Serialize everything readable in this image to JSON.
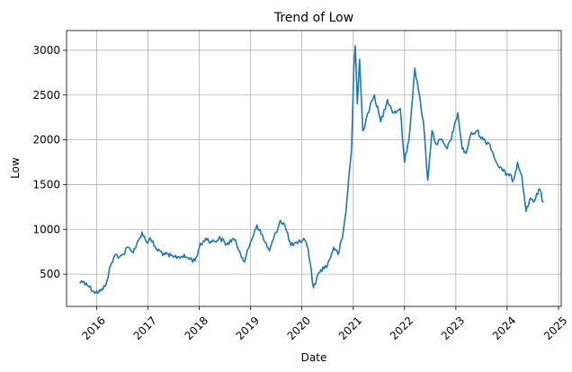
{
  "chart_data": {
    "type": "line",
    "title": "Trend of Low",
    "xlabel": "Date",
    "ylabel": "Low",
    "grid": true,
    "xlim": [
      "2015-06-01",
      "2025-01-20"
    ],
    "ylim": [
      140,
      3220
    ],
    "x_ticks": [
      "2016",
      "2017",
      "2018",
      "2019",
      "2020",
      "2021",
      "2022",
      "2023",
      "2024",
      "2025"
    ],
    "y_ticks": [
      500,
      1000,
      1500,
      2000,
      2500,
      3000
    ],
    "series": [
      {
        "color": "#1f77b4",
        "points": [
          [
            "2015-09-01",
            410
          ],
          [
            "2015-10-01",
            420
          ],
          [
            "2015-10-20",
            400
          ],
          [
            "2015-11-10",
            360
          ],
          [
            "2015-12-10",
            310
          ],
          [
            "2016-01-15",
            300
          ],
          [
            "2016-02-15",
            330
          ],
          [
            "2016-03-15",
            430
          ],
          [
            "2016-04-10",
            600
          ],
          [
            "2016-05-15",
            720
          ],
          [
            "2016-06-15",
            700
          ],
          [
            "2016-07-10",
            720
          ],
          [
            "2016-08-10",
            800
          ],
          [
            "2016-09-10",
            750
          ],
          [
            "2016-10-10",
            820
          ],
          [
            "2016-11-01",
            900
          ],
          [
            "2016-11-20",
            970
          ],
          [
            "2016-12-20",
            860
          ],
          [
            "2017-01-20",
            890
          ],
          [
            "2017-03-01",
            780
          ],
          [
            "2017-05-01",
            720
          ],
          [
            "2017-07-01",
            690
          ],
          [
            "2017-09-01",
            700
          ],
          [
            "2017-10-15",
            680
          ],
          [
            "2017-12-01",
            650
          ],
          [
            "2018-01-01",
            800
          ],
          [
            "2018-02-15",
            900
          ],
          [
            "2018-04-01",
            860
          ],
          [
            "2018-06-01",
            900
          ],
          [
            "2018-07-15",
            830
          ],
          [
            "2018-09-01",
            900
          ],
          [
            "2018-10-15",
            760
          ],
          [
            "2018-11-20",
            640
          ],
          [
            "2019-01-01",
            860
          ],
          [
            "2019-02-15",
            1050
          ],
          [
            "2019-04-01",
            900
          ],
          [
            "2019-05-15",
            760
          ],
          [
            "2019-06-15",
            900
          ],
          [
            "2019-08-01",
            1100
          ],
          [
            "2019-09-01",
            1050
          ],
          [
            "2019-10-15",
            820
          ],
          [
            "2019-12-01",
            840
          ],
          [
            "2020-01-15",
            900
          ],
          [
            "2020-02-15",
            780
          ],
          [
            "2020-03-23",
            350
          ],
          [
            "2020-04-15",
            450
          ],
          [
            "2020-05-15",
            550
          ],
          [
            "2020-07-01",
            600
          ],
          [
            "2020-08-15",
            800
          ],
          [
            "2020-09-15",
            720
          ],
          [
            "2020-10-15",
            900
          ],
          [
            "2020-11-10",
            1200
          ],
          [
            "2020-12-01",
            1600
          ],
          [
            "2020-12-20",
            1900
          ],
          [
            "2021-01-05",
            2800
          ],
          [
            "2021-01-15",
            3050
          ],
          [
            "2021-01-30",
            2400
          ],
          [
            "2021-02-15",
            2900
          ],
          [
            "2021-03-10",
            2100
          ],
          [
            "2021-04-15",
            2300
          ],
          [
            "2021-06-01",
            2500
          ],
          [
            "2021-07-15",
            2200
          ],
          [
            "2021-09-01",
            2450
          ],
          [
            "2021-10-15",
            2300
          ],
          [
            "2021-12-01",
            2350
          ],
          [
            "2022-01-01",
            1750
          ],
          [
            "2022-02-01",
            2000
          ],
          [
            "2022-03-15",
            2800
          ],
          [
            "2022-04-10",
            2550
          ],
          [
            "2022-05-15",
            2200
          ],
          [
            "2022-06-15",
            1550
          ],
          [
            "2022-07-15",
            2100
          ],
          [
            "2022-08-15",
            1950
          ],
          [
            "2022-09-15",
            2000
          ],
          [
            "2022-11-01",
            1900
          ],
          [
            "2022-12-15",
            2100
          ],
          [
            "2023-01-15",
            2300
          ],
          [
            "2023-02-15",
            1900
          ],
          [
            "2023-03-15",
            1850
          ],
          [
            "2023-04-15",
            2050
          ],
          [
            "2023-06-01",
            2100
          ],
          [
            "2023-07-15",
            2000
          ],
          [
            "2023-09-01",
            1950
          ],
          [
            "2023-10-15",
            1750
          ],
          [
            "2023-12-01",
            1650
          ],
          [
            "2024-01-15",
            1600
          ],
          [
            "2024-02-15",
            1550
          ],
          [
            "2024-03-15",
            1750
          ],
          [
            "2024-04-15",
            1600
          ],
          [
            "2024-05-15",
            1200
          ],
          [
            "2024-06-15",
            1350
          ],
          [
            "2024-07-15",
            1320
          ],
          [
            "2024-08-20",
            1450
          ],
          [
            "2024-09-15",
            1300
          ]
        ]
      }
    ]
  }
}
